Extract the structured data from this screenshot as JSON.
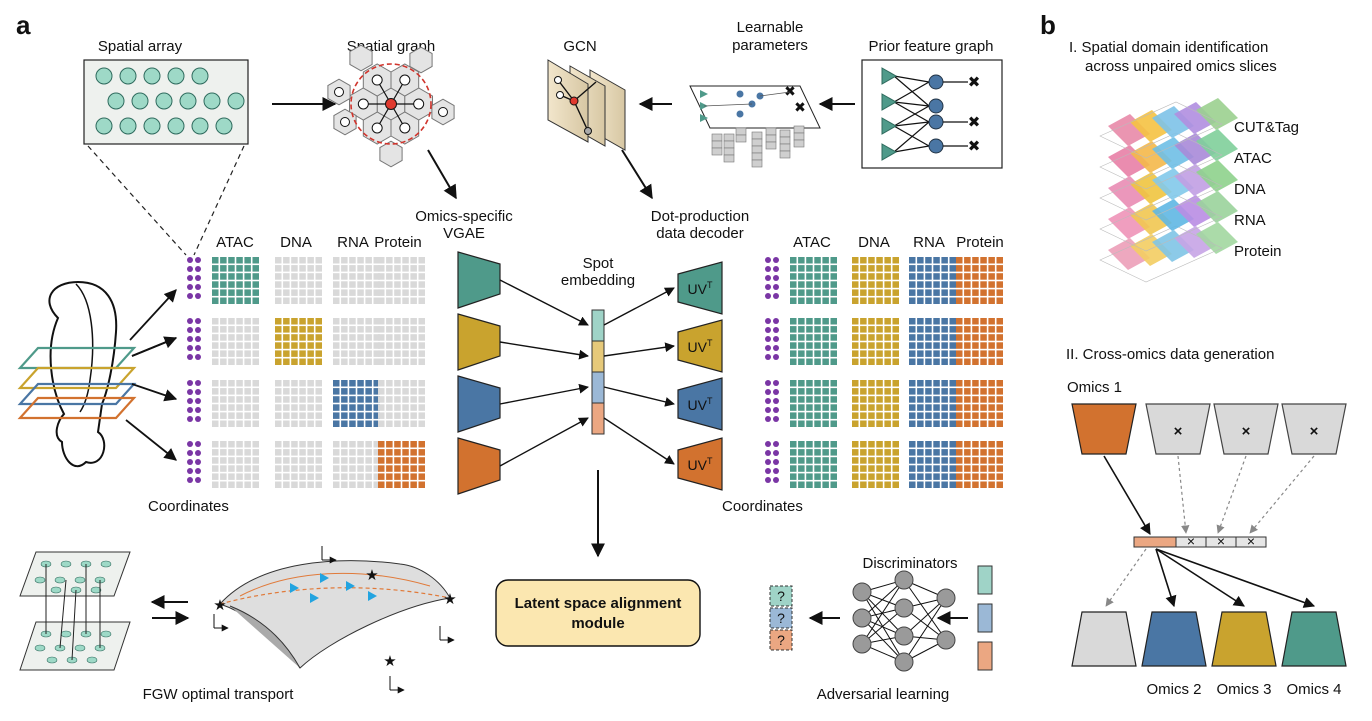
{
  "panel_a": {
    "letter": "a",
    "spatial_array": "Spatial array",
    "spatial_graph": "Spatial graph",
    "gcn": "GCN",
    "learnable_parameters": [
      "Learnable",
      "parameters"
    ],
    "prior_feature_graph": "Prior feature graph",
    "omics_vgae": [
      "Omics-specific",
      "VGAE"
    ],
    "decoder": [
      "Dot-production",
      "data decoder"
    ],
    "spot_embedding": [
      "Spot",
      "embedding"
    ],
    "omics_headers": [
      "ATAC",
      "DNA",
      "RNA",
      "Protein"
    ],
    "coordinates": "Coordinates",
    "uv": "UV",
    "uv_sup": "T",
    "fgw": "FGW optimal transport",
    "latent_alignment": [
      "Latent space alignment",
      "module"
    ],
    "discriminators": "Discriminators",
    "adversarial": "Adversarial learning",
    "question": "?"
  },
  "panel_b": {
    "letter": "b",
    "title1": [
      "I. Spatial domain identification",
      "across unpaired omics slices"
    ],
    "layers": [
      "CUT&Tag",
      "ATAC",
      "DNA",
      "RNA",
      "Protein"
    ],
    "title2": "II. Cross-omics data generation",
    "omics1": "Omics 1",
    "outputs": [
      "Omics 2",
      "Omics 3",
      "Omics 4"
    ],
    "cross": "×"
  },
  "colors": {
    "atac": "#4f9a8a",
    "dna": "#c9a32e",
    "rna": "#4a76a4",
    "protein": "#d2722f",
    "grey_cell": "#d9d9d9",
    "coord_dot": "#7a36a5",
    "spot_teal": "#9fd3c7",
    "spot_gold": "#e6c97a",
    "spot_blue": "#9bb8d6",
    "spot_orange": "#eba782",
    "alignment_box": "#fbe7b0",
    "graph_node": "#9ed9c7"
  }
}
